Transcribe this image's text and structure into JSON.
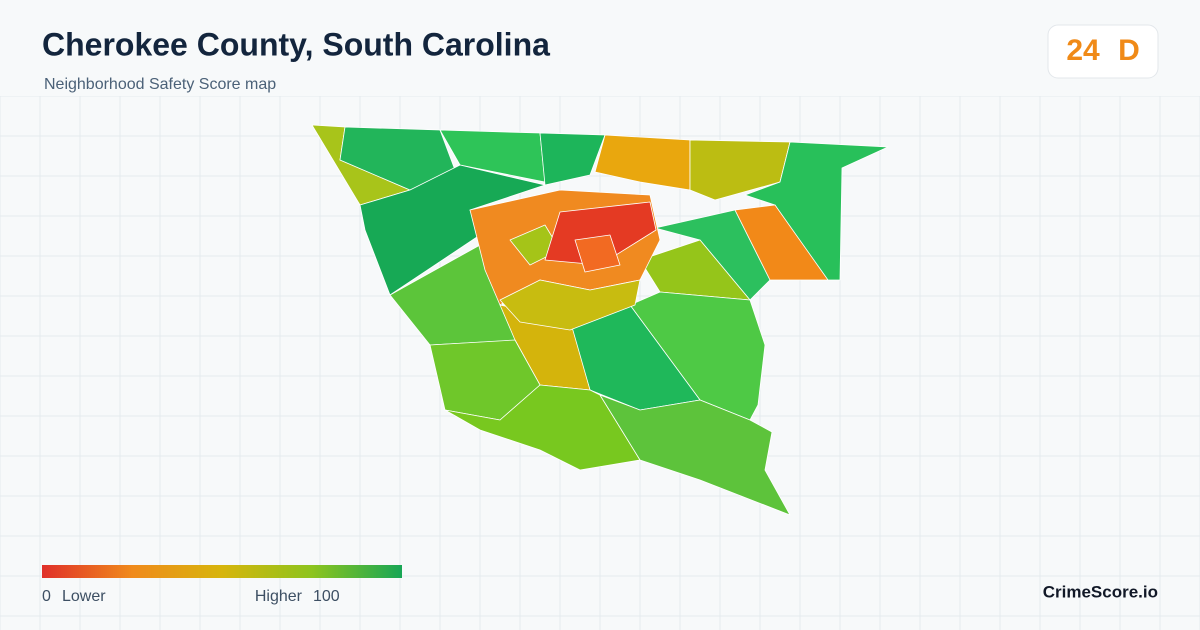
{
  "header": {
    "title": "Cherokee County, South Carolina",
    "subtitle": "Neighborhood Safety Score map"
  },
  "score": {
    "value": "24",
    "grade": "D"
  },
  "legend": {
    "min": "0",
    "min_label": "Lower",
    "max_label": "Higher",
    "max": "100"
  },
  "brand": "CrimeScore.io"
}
